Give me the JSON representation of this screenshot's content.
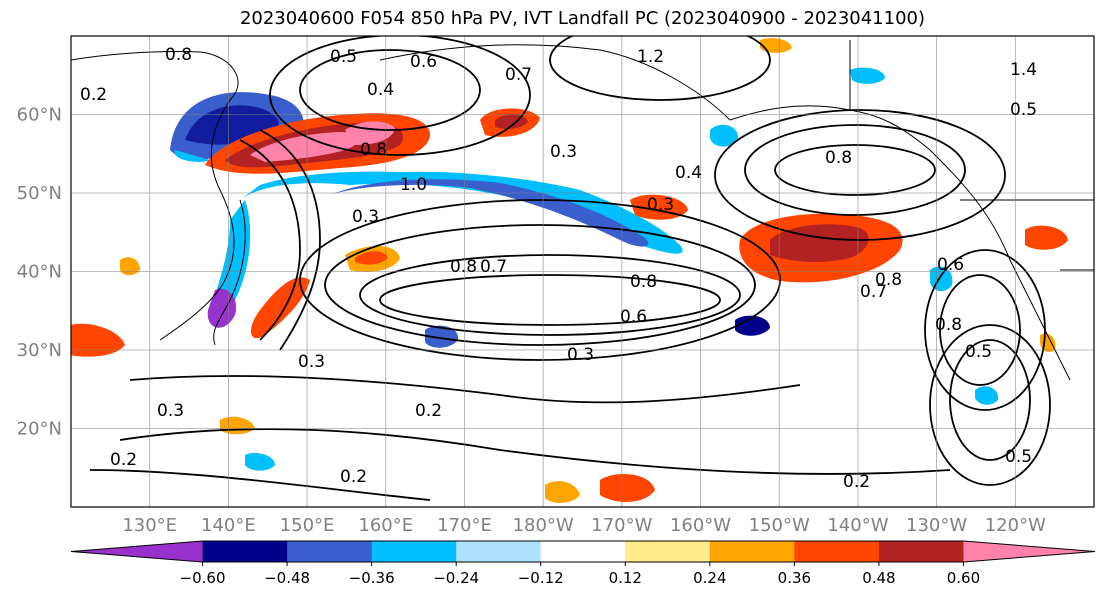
{
  "title": "2023040600 F054 850 hPa PV, IVT Landfall PC (2023040900 - 2023041100)",
  "map": {
    "lon_range": [
      120,
      250
    ],
    "lat_range": [
      10,
      70
    ],
    "lat_ticks": [
      "60°N",
      "50°N",
      "40°N",
      "30°N",
      "20°N"
    ],
    "lat_values": [
      60,
      50,
      40,
      30,
      20
    ],
    "lon_ticks": [
      "130°E",
      "140°E",
      "150°E",
      "160°E",
      "170°E",
      "180°W",
      "170°W",
      "160°W",
      "150°W",
      "140°W",
      "130°W",
      "120°W"
    ],
    "lon_values": [
      130,
      140,
      150,
      160,
      170,
      180,
      190,
      200,
      210,
      220,
      230,
      240
    ],
    "gridlines": true
  },
  "colorbar": {
    "colors": [
      "#9932cc",
      "#00008b",
      "#3a5fcd",
      "#00bfff",
      "#b0e2ff",
      "#ffffff",
      "#ffec8b",
      "#ffa500",
      "#ff4500",
      "#b22222",
      "#ff82ab"
    ],
    "tick_labels": [
      "−0.60",
      "−0.48",
      "−0.36",
      "−0.24",
      "−0.12",
      "0.12",
      "0.24",
      "0.36",
      "0.48",
      "0.60"
    ]
  },
  "contour_labels": [
    "0.8",
    "0.5",
    "0.6",
    "1.2",
    "1.4",
    "0.2",
    "0.3",
    "0.4",
    "0.7",
    "0.8",
    "0.3",
    "0.8",
    "1.0",
    "0.3",
    "0.7",
    "0.8",
    "0.8",
    "0.6",
    "0.7",
    "0.8",
    "0.6",
    "0.8",
    "0.3",
    "0.3",
    "0.2",
    "0.5",
    "0.2",
    "0.5",
    "0.2",
    "0.2",
    "0.5",
    "0.3",
    "0.4"
  ]
}
